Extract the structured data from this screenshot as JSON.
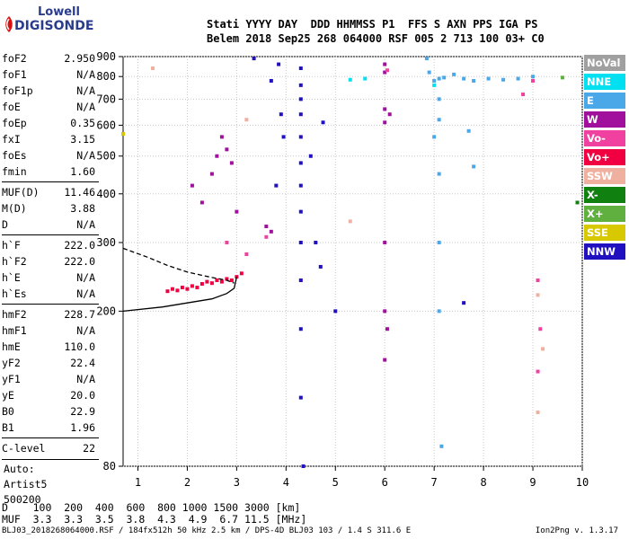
{
  "logo": {
    "line1": "Lowell",
    "line2": "DIGISONDE"
  },
  "header": {
    "line1": "Stati YYYY DAY  DDD HHMMSS P1  FFS S AXN PPS IGA PS",
    "line2": "Belem 2018 Sep25 268 064000 RSF 005 2 713 100 03+ C0"
  },
  "params": {
    "group1": [
      {
        "name": "foF2",
        "value": "2.950"
      },
      {
        "name": "foF1",
        "value": "N/A"
      },
      {
        "name": "foF1p",
        "value": "N/A"
      },
      {
        "name": "foE",
        "value": "N/A"
      },
      {
        "name": "foEp",
        "value": "0.35"
      },
      {
        "name": "fxI",
        "value": "3.15"
      },
      {
        "name": "foEs",
        "value": "N/A"
      },
      {
        "name": "fmin",
        "value": "1.60"
      }
    ],
    "group2": [
      {
        "name": "MUF(D)",
        "value": "11.46"
      },
      {
        "name": "M(D)",
        "value": "3.88"
      },
      {
        "name": "D",
        "value": "N/A"
      }
    ],
    "group3": [
      {
        "name": "h`F",
        "value": "222.0"
      },
      {
        "name": "h`F2",
        "value": "222.0"
      },
      {
        "name": "h`E",
        "value": "N/A"
      },
      {
        "name": "h`Es",
        "value": "N/A"
      }
    ],
    "group4": [
      {
        "name": "hmF2",
        "value": "228.7"
      },
      {
        "name": "hmF1",
        "value": "N/A"
      },
      {
        "name": "hmE",
        "value": "110.0"
      },
      {
        "name": "yF2",
        "value": "22.4"
      },
      {
        "name": "yF1",
        "value": "N/A"
      },
      {
        "name": "yE",
        "value": "20.0"
      },
      {
        "name": "B0",
        "value": "22.9"
      },
      {
        "name": "B1",
        "value": "1.96"
      }
    ],
    "group5": [
      {
        "name": "C-level",
        "value": "22"
      }
    ],
    "auto_lines": [
      "Auto:",
      "Artist5",
      "500200"
    ]
  },
  "legend": [
    {
      "label": "NoVal",
      "color": "#a0a0a0"
    },
    {
      "label": "NNE",
      "color": "#00e0f0"
    },
    {
      "label": "E",
      "color": "#4aa8e8"
    },
    {
      "label": "W",
      "color": "#a0109c"
    },
    {
      "label": "Vo-",
      "color": "#f040a0"
    },
    {
      "label": "Vo+",
      "color": "#f00040"
    },
    {
      "label": "SSW",
      "color": "#f0b0a0"
    },
    {
      "label": "X-",
      "color": "#108010"
    },
    {
      "label": "X+",
      "color": "#60b040"
    },
    {
      "label": "SSE",
      "color": "#d8c800"
    },
    {
      "label": "NNW",
      "color": "#2010c0"
    }
  ],
  "dmuf": {
    "d_row": "D    100  200  400  600  800 1000 1500 3000 [km]",
    "muf_row": "MUF  3.3  3.3  3.5  3.8  4.3  4.9  6.7 11.5 [MHz]"
  },
  "footer": {
    "left": "BLJ03_2018268064000.RSF / 184fx512h 50 kHz 2.5 km / DPS-4D BLJ03 103 / 1.4 S 311.6 E",
    "right": "Ion2Png v. 1.3.17"
  },
  "chart_data": {
    "type": "scatter",
    "title": "",
    "xlabel": "",
    "ylabel": "",
    "x_unit": "MHz",
    "y_unit": "km",
    "xlim": [
      0.7,
      10.0
    ],
    "ylim": [
      80,
      900
    ],
    "y_scale": "log",
    "grid": true,
    "x_ticks": [
      1,
      2,
      3,
      4,
      5,
      6,
      7,
      8,
      9,
      10
    ],
    "y_ticks": [
      80,
      200,
      300,
      400,
      500,
      600,
      700,
      800,
      900
    ],
    "legend_position": "right",
    "profile_curve": {
      "name": "",
      "style": "solid",
      "points": [
        [
          0.7,
          200
        ],
        [
          1.5,
          205
        ],
        [
          2.0,
          210
        ],
        [
          2.5,
          215
        ],
        [
          2.8,
          222
        ],
        [
          2.95,
          229
        ],
        [
          3.0,
          245
        ]
      ]
    },
    "upper_curve": {
      "name": "",
      "style": "dashed",
      "points": [
        [
          0.7,
          290
        ],
        [
          1.2,
          275
        ],
        [
          1.6,
          262
        ],
        [
          2.0,
          252
        ],
        [
          2.5,
          244
        ],
        [
          2.8,
          240
        ],
        [
          2.95,
          236
        ]
      ]
    },
    "series": [
      {
        "name": "Vo+",
        "color": "#f00040",
        "points": [
          [
            1.6,
            225
          ],
          [
            1.7,
            228
          ],
          [
            1.8,
            226
          ],
          [
            1.9,
            230
          ],
          [
            2.0,
            228
          ],
          [
            2.1,
            232
          ],
          [
            2.2,
            230
          ],
          [
            2.3,
            235
          ],
          [
            2.4,
            238
          ],
          [
            2.5,
            236
          ],
          [
            2.6,
            240
          ],
          [
            2.7,
            238
          ],
          [
            2.8,
            242
          ],
          [
            2.9,
            240
          ],
          [
            3.0,
            245
          ],
          [
            3.1,
            250
          ]
        ]
      },
      {
        "name": "W",
        "color": "#a0109c",
        "points": [
          [
            2.1,
            420
          ],
          [
            2.3,
            380
          ],
          [
            2.5,
            450
          ],
          [
            2.6,
            500
          ],
          [
            2.7,
            560
          ],
          [
            2.8,
            520
          ],
          [
            2.9,
            480
          ],
          [
            3.0,
            360
          ],
          [
            3.6,
            330
          ],
          [
            3.7,
            320
          ],
          [
            6.0,
            860
          ],
          [
            6.0,
            820
          ],
          [
            6.0,
            660
          ],
          [
            6.0,
            610
          ],
          [
            6.0,
            300
          ],
          [
            6.0,
            200
          ],
          [
            6.05,
            180
          ],
          [
            6.0,
            150
          ],
          [
            6.1,
            640
          ]
        ]
      },
      {
        "name": "NNW",
        "color": "#2010c0",
        "points": [
          [
            3.35,
            890
          ],
          [
            3.7,
            780
          ],
          [
            3.85,
            860
          ],
          [
            3.8,
            420
          ],
          [
            3.9,
            640
          ],
          [
            3.95,
            560
          ],
          [
            4.3,
            840
          ],
          [
            4.3,
            760
          ],
          [
            4.3,
            700
          ],
          [
            4.3,
            640
          ],
          [
            4.3,
            560
          ],
          [
            4.3,
            480
          ],
          [
            4.3,
            420
          ],
          [
            4.3,
            360
          ],
          [
            4.3,
            300
          ],
          [
            4.3,
            240
          ],
          [
            4.3,
            180
          ],
          [
            4.3,
            120
          ],
          [
            4.35,
            80
          ],
          [
            4.5,
            500
          ],
          [
            4.6,
            300
          ],
          [
            4.7,
            260
          ],
          [
            4.75,
            610
          ],
          [
            5.0,
            200
          ],
          [
            7.6,
            210
          ]
        ]
      },
      {
        "name": "E",
        "color": "#4aa8e8",
        "points": [
          [
            6.85,
            890
          ],
          [
            6.9,
            820
          ],
          [
            7.0,
            780
          ],
          [
            7.1,
            790
          ],
          [
            7.2,
            795
          ],
          [
            7.4,
            810
          ],
          [
            7.6,
            790
          ],
          [
            7.8,
            780
          ],
          [
            8.1,
            790
          ],
          [
            8.4,
            785
          ],
          [
            8.7,
            790
          ],
          [
            9.0,
            800
          ],
          [
            7.1,
            700
          ],
          [
            7.1,
            620
          ],
          [
            7.0,
            560
          ],
          [
            7.1,
            450
          ],
          [
            7.1,
            300
          ],
          [
            7.1,
            200
          ],
          [
            7.15,
            90
          ],
          [
            7.7,
            580
          ],
          [
            7.8,
            470
          ]
        ]
      },
      {
        "name": "Vo-",
        "color": "#f040a0",
        "points": [
          [
            2.8,
            300
          ],
          [
            3.2,
            280
          ],
          [
            3.6,
            310
          ],
          [
            6.05,
            830
          ],
          [
            8.8,
            720
          ],
          [
            9.0,
            780
          ],
          [
            9.1,
            240
          ],
          [
            9.15,
            180
          ],
          [
            9.1,
            140
          ]
        ]
      },
      {
        "name": "SSW",
        "color": "#f0b0a0",
        "points": [
          [
            1.3,
            840
          ],
          [
            3.2,
            620
          ],
          [
            5.3,
            340
          ],
          [
            9.1,
            220
          ],
          [
            9.2,
            160
          ],
          [
            9.1,
            110
          ]
        ]
      },
      {
        "name": "NNE",
        "color": "#00e0f0",
        "points": [
          [
            5.3,
            785
          ],
          [
            5.6,
            790
          ],
          [
            7.0,
            760
          ]
        ]
      },
      {
        "name": "X-",
        "color": "#108010",
        "points": [
          [
            9.9,
            380
          ]
        ]
      },
      {
        "name": "X+",
        "color": "#60b040",
        "points": [
          [
            9.6,
            795
          ]
        ]
      },
      {
        "name": "SSE",
        "color": "#d8c800",
        "points": [
          [
            0.7,
            570
          ]
        ]
      }
    ]
  }
}
